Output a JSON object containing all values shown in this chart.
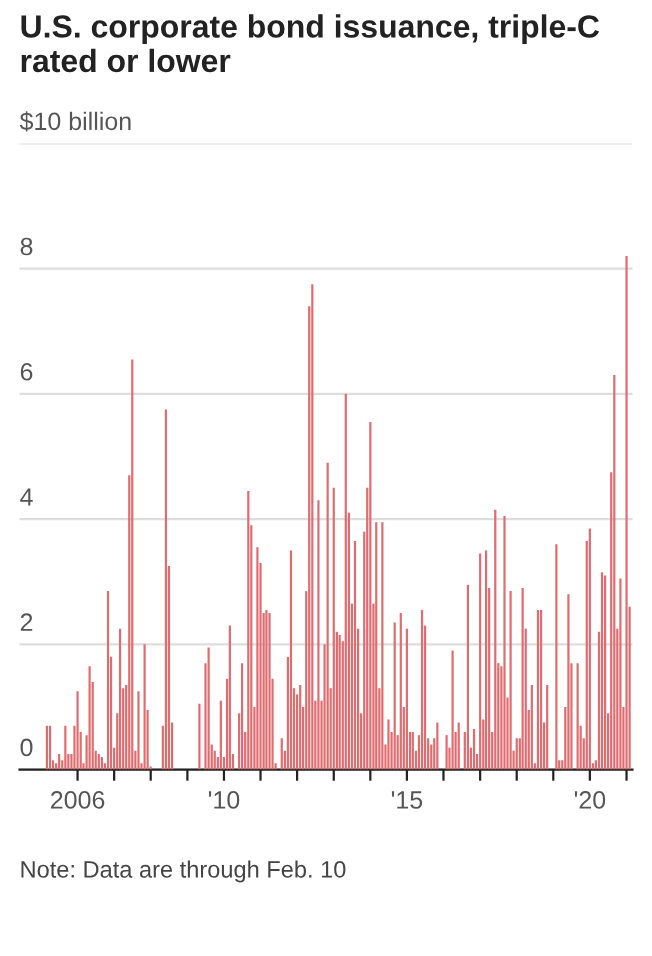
{
  "chart_data": {
    "type": "bar",
    "title": "U.S. corporate bond issuance, triple-C rated or lower",
    "x": [
      "2005-01",
      "2005-02",
      "2005-03",
      "2005-04",
      "2005-05",
      "2005-06",
      "2005-07",
      "2005-08",
      "2005-09",
      "2005-10",
      "2005-11",
      "2005-12",
      "2006-01",
      "2006-02",
      "2006-03",
      "2006-04",
      "2006-05",
      "2006-06",
      "2006-07",
      "2006-08",
      "2006-09",
      "2006-10",
      "2006-11",
      "2006-12",
      "2007-01",
      "2007-02",
      "2007-03",
      "2007-04",
      "2007-05",
      "2007-06",
      "2007-07",
      "2007-08",
      "2007-09",
      "2007-10",
      "2007-11",
      "2007-12",
      "2008-01",
      "2008-02",
      "2008-03",
      "2008-04",
      "2008-05",
      "2008-06",
      "2008-07",
      "2008-08",
      "2008-09",
      "2008-10",
      "2008-11",
      "2008-12",
      "2009-01",
      "2009-02",
      "2009-03",
      "2009-04",
      "2009-05",
      "2009-06",
      "2009-07",
      "2009-08",
      "2009-09",
      "2009-10",
      "2009-11",
      "2009-12",
      "2010-01",
      "2010-02",
      "2010-03",
      "2010-04",
      "2010-05",
      "2010-06",
      "2010-07",
      "2010-08",
      "2010-09",
      "2010-10",
      "2010-11",
      "2010-12",
      "2011-01",
      "2011-02",
      "2011-03",
      "2011-04",
      "2011-05",
      "2011-06",
      "2011-07",
      "2011-08",
      "2011-09",
      "2011-10",
      "2011-11",
      "2011-12",
      "2012-01",
      "2012-02",
      "2012-03",
      "2012-04",
      "2012-05",
      "2012-06",
      "2012-07",
      "2012-08",
      "2012-09",
      "2012-10",
      "2012-11",
      "2012-12",
      "2013-01",
      "2013-02",
      "2013-03",
      "2013-04",
      "2013-05",
      "2013-06",
      "2013-07",
      "2013-08",
      "2013-09",
      "2013-10",
      "2013-11",
      "2013-12",
      "2014-01",
      "2014-02",
      "2014-03",
      "2014-04",
      "2014-05",
      "2014-06",
      "2014-07",
      "2014-08",
      "2014-09",
      "2014-10",
      "2014-11",
      "2014-12",
      "2015-01",
      "2015-02",
      "2015-03",
      "2015-04",
      "2015-05",
      "2015-06",
      "2015-07",
      "2015-08",
      "2015-09",
      "2015-10",
      "2015-11",
      "2015-12",
      "2016-01",
      "2016-02",
      "2016-03",
      "2016-04",
      "2016-05",
      "2016-06",
      "2016-07",
      "2016-08",
      "2016-09",
      "2016-10",
      "2016-11",
      "2016-12",
      "2017-01",
      "2017-02",
      "2017-03",
      "2017-04",
      "2017-05",
      "2017-06",
      "2017-07",
      "2017-08",
      "2017-09",
      "2017-10",
      "2017-11",
      "2017-12",
      "2018-01",
      "2018-02",
      "2018-03",
      "2018-04",
      "2018-05",
      "2018-06",
      "2018-07",
      "2018-08",
      "2018-09",
      "2018-10",
      "2018-11",
      "2018-12",
      "2019-01",
      "2019-02",
      "2019-03",
      "2019-04",
      "2019-05",
      "2019-06",
      "2019-07",
      "2019-08",
      "2019-09",
      "2019-10",
      "2019-11",
      "2019-12",
      "2020-01",
      "2020-02",
      "2020-03",
      "2020-04",
      "2020-05",
      "2020-06",
      "2020-07",
      "2020-08",
      "2020-09",
      "2020-10",
      "2020-11",
      "2020-12",
      "2021-01",
      "2021-02"
    ],
    "values": [
      0,
      0,
      0.7,
      0.7,
      0.15,
      0.1,
      0.25,
      0.15,
      0.7,
      0.25,
      0.25,
      0.7,
      1.25,
      0.6,
      0.1,
      0.55,
      1.65,
      1.4,
      0.3,
      0.25,
      0.2,
      0.1,
      2.85,
      1.8,
      0.35,
      0.9,
      2.25,
      1.3,
      1.35,
      4.7,
      6.55,
      0.3,
      1.25,
      0.1,
      2.0,
      0.95,
      0.05,
      0,
      0,
      0,
      0.7,
      5.75,
      3.25,
      0.75,
      0,
      0,
      0,
      0,
      0,
      0,
      0,
      0,
      1.05,
      0,
      1.7,
      1.95,
      0.4,
      0.3,
      0.2,
      1.1,
      0.2,
      1.45,
      2.3,
      0.25,
      0,
      0.9,
      1.7,
      0.6,
      4.45,
      3.9,
      1.0,
      3.55,
      3.3,
      2.5,
      2.55,
      2.5,
      1.45,
      0.1,
      0,
      0.5,
      0.3,
      1.8,
      3.5,
      1.3,
      1.2,
      1.35,
      1.0,
      2.85,
      7.4,
      7.75,
      1.1,
      4.3,
      1.1,
      2.0,
      4.9,
      1.3,
      4.5,
      2.2,
      2.15,
      2.05,
      6.0,
      4.1,
      2.65,
      3.65,
      2.25,
      0.9,
      3.8,
      4.5,
      5.55,
      2.65,
      3.95,
      1.3,
      3.95,
      0.4,
      0.8,
      0.6,
      2.35,
      0.55,
      2.5,
      1.0,
      2.25,
      0.6,
      0.6,
      0.3,
      0.55,
      2.55,
      2.3,
      0.5,
      0.4,
      0.5,
      0.75,
      0,
      0,
      0.55,
      0.35,
      1.9,
      0.6,
      0.75,
      0,
      0.6,
      2.95,
      0.35,
      0.65,
      0.25,
      3.45,
      0.8,
      3.5,
      2.9,
      0.6,
      4.15,
      1.7,
      1.65,
      4.05,
      1.15,
      2.85,
      0.3,
      0.5,
      0.5,
      2.9,
      2.25,
      0.95,
      1.35,
      0.1,
      2.55,
      2.55,
      0.75,
      1.35,
      0,
      0,
      3.6,
      0.15,
      0.15,
      1.0,
      2.8,
      1.7,
      0,
      1.7,
      0.7,
      0.5,
      3.65,
      3.85,
      0.1,
      0.15,
      2.2,
      3.15,
      3.1,
      0.9,
      4.75,
      6.3,
      2.25,
      3.05,
      1.0,
      8.2,
      2.6
    ],
    "color": "#e06c70",
    "xlim": [
      "2004-06",
      "2021-03"
    ],
    "xticks": [
      {
        "value": "2006",
        "label": "2006"
      },
      {
        "value": "2007",
        "label": null
      },
      {
        "value": "2008",
        "label": null
      },
      {
        "value": "2009",
        "label": null
      },
      {
        "value": "2010",
        "label": "'10"
      },
      {
        "value": "2011",
        "label": null
      },
      {
        "value": "2012",
        "label": null
      },
      {
        "value": "2013",
        "label": null
      },
      {
        "value": "2014",
        "label": null
      },
      {
        "value": "2015",
        "label": "'15"
      },
      {
        "value": "2016",
        "label": null
      },
      {
        "value": "2017",
        "label": null
      },
      {
        "value": "2018",
        "label": null
      },
      {
        "value": "2019",
        "label": null
      },
      {
        "value": "2020",
        "label": "'20"
      },
      {
        "value": "2021",
        "label": null
      }
    ],
    "ylim": [
      0,
      10
    ],
    "yticks": [
      0,
      2,
      4,
      6,
      8,
      {
        "value": 10,
        "label": "$10 billion"
      }
    ],
    "grid": "y",
    "annotations": [
      "Note: Data are through Feb. 10"
    ]
  }
}
